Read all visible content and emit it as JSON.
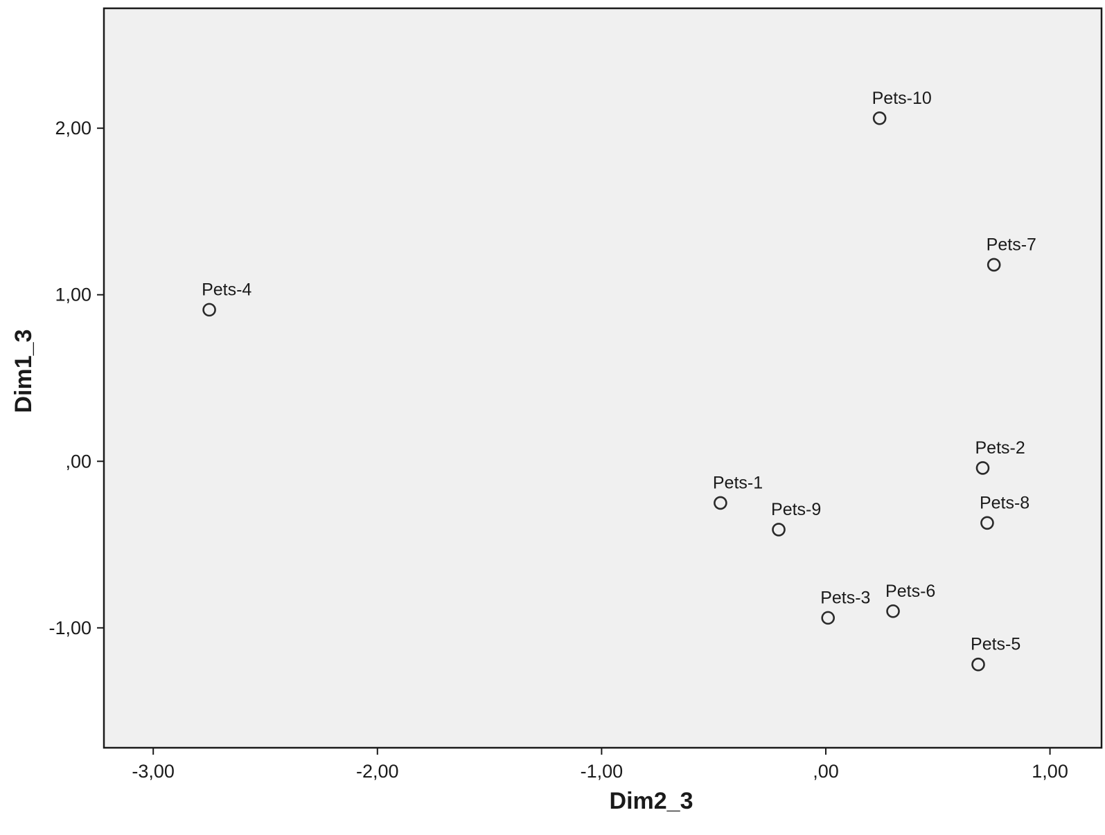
{
  "chart_data": {
    "type": "scatter",
    "title": "",
    "xlabel": "Dim2_3",
    "ylabel": "Dim1_3",
    "xlim": [
      -3.22,
      1.23
    ],
    "ylim": [
      -1.72,
      2.72
    ],
    "x_ticks": [
      -3,
      -2,
      -1,
      0,
      1
    ],
    "x_tick_labels": [
      "-3,00",
      "-2,00",
      "-1,00",
      ",00",
      "1,00"
    ],
    "y_ticks": [
      2,
      1,
      0,
      -1
    ],
    "y_tick_labels": [
      "2,00",
      "1,00",
      ",00",
      "-1,00"
    ],
    "grid": false,
    "legend": "none",
    "colors": {
      "plot_background": "#f0f0f0",
      "frame": "#1a1a1a",
      "marker": "#2a2a2a",
      "text": "#1a1a1a"
    },
    "points": [
      {
        "label": "Pets-10",
        "x": 0.24,
        "y": 2.06
      },
      {
        "label": "Pets-7",
        "x": 0.75,
        "y": 1.18
      },
      {
        "label": "Pets-4",
        "x": -2.75,
        "y": 0.91
      },
      {
        "label": "Pets-2",
        "x": 0.7,
        "y": -0.04
      },
      {
        "label": "Pets-1",
        "x": -0.47,
        "y": -0.25
      },
      {
        "label": "Pets-9",
        "x": -0.21,
        "y": -0.41
      },
      {
        "label": "Pets-8",
        "x": 0.72,
        "y": -0.37
      },
      {
        "label": "Pets-3",
        "x": 0.01,
        "y": -0.94
      },
      {
        "label": "Pets-6",
        "x": 0.3,
        "y": -0.9
      },
      {
        "label": "Pets-5",
        "x": 0.68,
        "y": -1.22
      }
    ]
  }
}
